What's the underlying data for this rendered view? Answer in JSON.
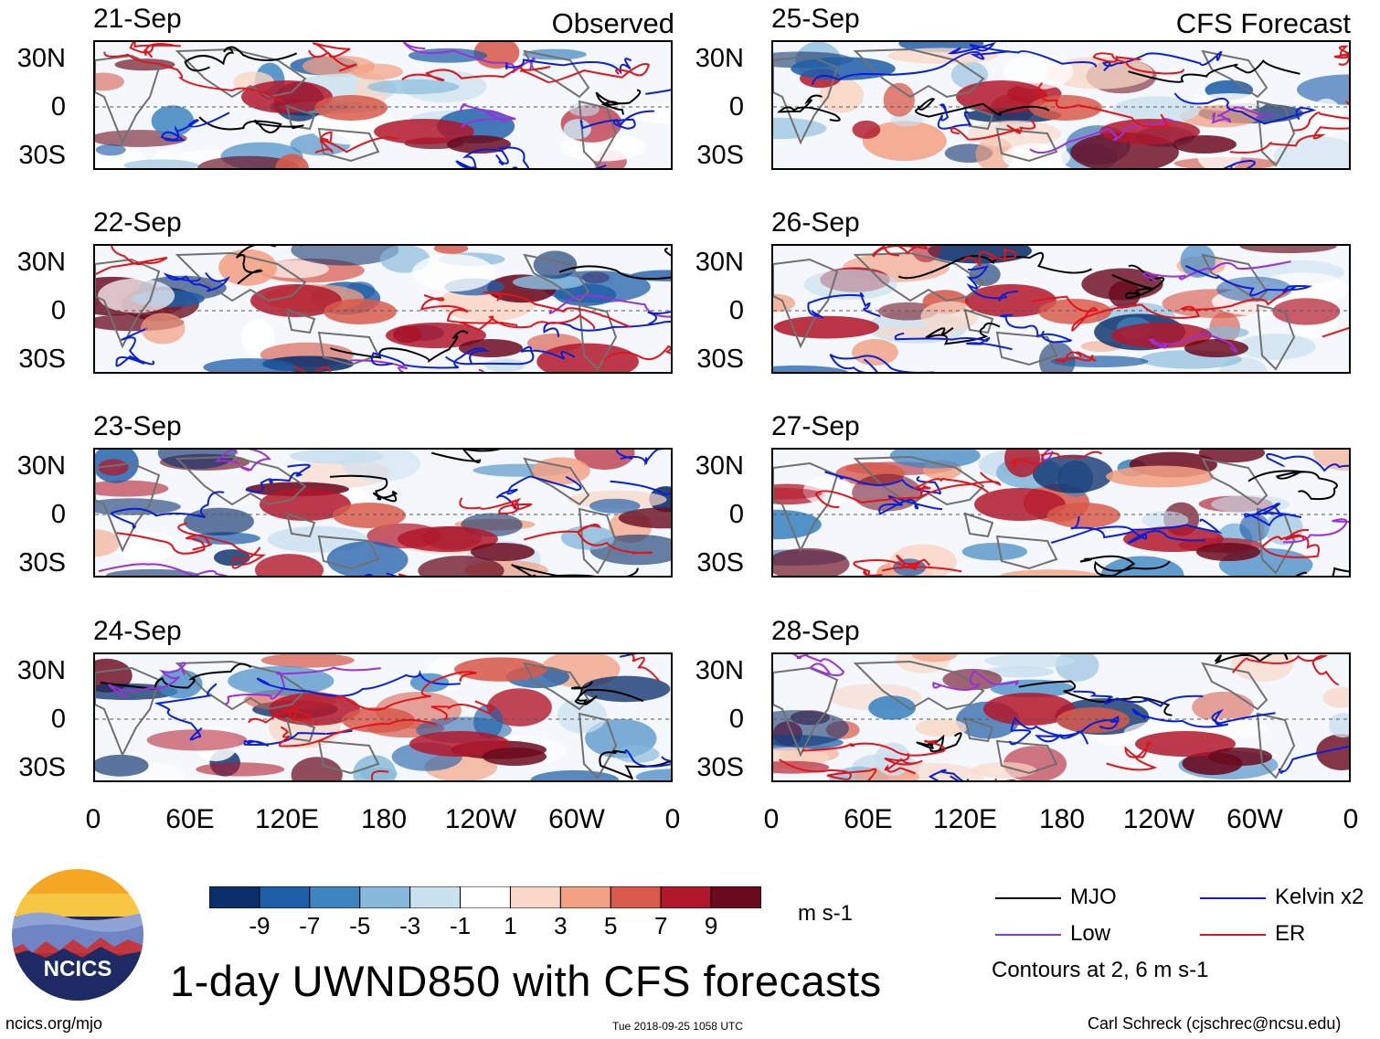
{
  "figure": {
    "main_title": "1-day UWND850 with CFS forecasts",
    "observed_label": "Observed",
    "forecast_label": "CFS Forecast",
    "units": "m s-1",
    "logo_text": "NCICS",
    "website": "ncics.org/mjo",
    "timestamp": "Tue 2018-09-25 1058 UTC",
    "author": "Carl Schreck (cjschrec@ncsu.edu)",
    "contour_note": "Contours at 2, 6 m s-1"
  },
  "legend": [
    {
      "label": "MJO",
      "color": "#000000"
    },
    {
      "label": "Low",
      "color": "#9b30d9"
    },
    {
      "label": "Kelvin x2",
      "color": "#0a1fd6"
    },
    {
      "label": "ER",
      "color": "#e0141a"
    }
  ],
  "colorbar": {
    "ticks": [
      "-9",
      "-7",
      "-5",
      "-3",
      "-1",
      "1",
      "3",
      "5",
      "7",
      "9"
    ],
    "colors": [
      "#0b2f6b",
      "#1f5ea8",
      "#3d86c2",
      "#86b9db",
      "#c9e0ef",
      "#ffffff",
      "#fad7c6",
      "#f2a183",
      "#d85a4b",
      "#b2182b",
      "#6b0a1e"
    ]
  },
  "chart_data": {
    "type": "heatmap",
    "variable": "UWND850",
    "units": "m s-1",
    "lat_ticks": [
      "30N",
      "0",
      "30S"
    ],
    "lon_ticks": [
      "0",
      "60E",
      "120E",
      "180",
      "120W",
      "60W",
      "0"
    ],
    "panels": [
      {
        "date": "21-Sep",
        "source": "Observed"
      },
      {
        "date": "22-Sep",
        "source": "Observed"
      },
      {
        "date": "23-Sep",
        "source": "Observed"
      },
      {
        "date": "24-Sep",
        "source": "Observed"
      },
      {
        "date": "25-Sep",
        "source": "CFS Forecast"
      },
      {
        "date": "26-Sep",
        "source": "CFS Forecast"
      },
      {
        "date": "27-Sep",
        "source": "CFS Forecast"
      },
      {
        "date": "28-Sep",
        "source": "CFS Forecast"
      }
    ]
  }
}
